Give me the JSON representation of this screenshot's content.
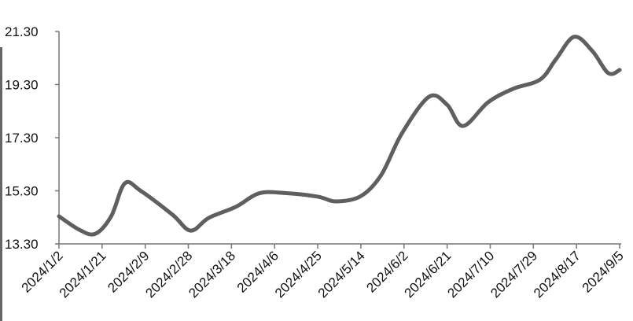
{
  "chart_data": {
    "type": "line",
    "title": "",
    "xlabel": "",
    "ylabel": "",
    "ylim": [
      13.3,
      21.3
    ],
    "yticks": [
      "13.30",
      "15.30",
      "17.30",
      "19.30",
      "21.30"
    ],
    "xticks": [
      "2024/1/2",
      "2024/1/21",
      "2024/2/9",
      "2024/2/28",
      "2024/3/18",
      "2024/4/6",
      "2024/4/25",
      "2024/5/14",
      "2024/6/2",
      "2024/6/21",
      "2024/7/10",
      "2024/7/29",
      "2024/8/17",
      "2024/9/5"
    ],
    "grid": false,
    "line_color": "#5f5f5f",
    "series": [
      {
        "x": [
          "2024-01-02",
          "2024-01-11",
          "2024-01-18",
          "2024-01-25",
          "2024-01-31",
          "2024-02-07",
          "2024-02-21",
          "2024-02-29",
          "2024-03-08",
          "2024-03-20",
          "2024-03-30",
          "2024-04-10",
          "2024-04-25",
          "2024-05-03",
          "2024-05-14",
          "2024-05-23",
          "2024-06-01",
          "2024-06-13",
          "2024-06-21",
          "2024-06-28",
          "2024-07-09",
          "2024-07-20",
          "2024-08-01",
          "2024-08-08",
          "2024-08-16",
          "2024-08-24",
          "2024-08-31",
          "2024-09-05"
        ],
        "values": [
          14.34,
          13.83,
          13.68,
          14.34,
          15.58,
          15.3,
          14.4,
          13.8,
          14.28,
          14.7,
          15.2,
          15.22,
          15.08,
          14.9,
          15.1,
          15.9,
          17.45,
          18.84,
          18.54,
          17.74,
          18.63,
          19.14,
          19.49,
          20.26,
          21.1,
          20.56,
          19.73,
          19.85
        ]
      }
    ]
  }
}
